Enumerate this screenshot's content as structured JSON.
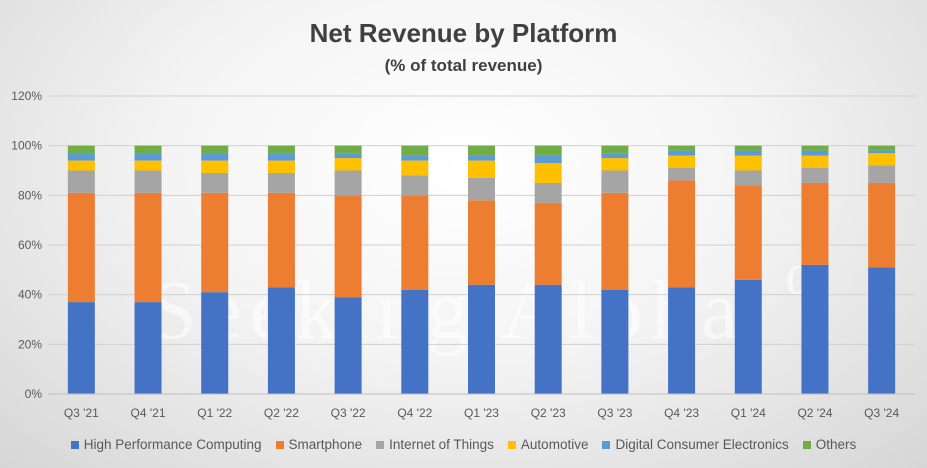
{
  "chart_data": {
    "type": "bar",
    "stacked": true,
    "title": "Net Revenue by Platform",
    "subtitle": "(% of total revenue)",
    "watermark": "Seeking Alpha",
    "watermark_symbol": "α",
    "xlabel": "",
    "ylabel": "",
    "ylim": [
      0,
      120
    ],
    "yticks": [
      "0%",
      "20%",
      "40%",
      "60%",
      "80%",
      "100%",
      "120%"
    ],
    "grid": true,
    "legend_position": "bottom",
    "categories": [
      "Q3 '21",
      "Q4 '21",
      "Q1 '22",
      "Q2 '22",
      "Q3 '22",
      "Q4 '22",
      "Q1 '23",
      "Q2 '23",
      "Q3 '23",
      "Q4 '23",
      "Q1 '24",
      "Q2 '24",
      "Q3 '24"
    ],
    "series": [
      {
        "name": "High Performance Computing",
        "color": "#4472C4",
        "values": [
          37,
          37,
          41,
          43,
          39,
          42,
          44,
          44,
          42,
          43,
          46,
          52,
          51
        ]
      },
      {
        "name": "Smartphone",
        "color": "#ED7D31",
        "values": [
          44,
          44,
          40,
          38,
          41,
          38,
          34,
          33,
          39,
          43,
          38,
          33,
          34
        ]
      },
      {
        "name": "Internet of Things",
        "color": "#A5A5A5",
        "values": [
          9,
          9,
          8,
          8,
          10,
          8,
          9,
          8,
          9,
          5,
          6,
          6,
          7
        ]
      },
      {
        "name": "Automotive",
        "color": "#FFC000",
        "values": [
          4,
          4,
          5,
          5,
          5,
          6,
          7,
          8,
          5,
          5,
          6,
          5,
          5
        ]
      },
      {
        "name": "Digital Consumer Electronics",
        "color": "#5B9BD5",
        "values": [
          3,
          3,
          3,
          3,
          2,
          2,
          2,
          3,
          2,
          2,
          2,
          2,
          1
        ]
      },
      {
        "name": "Others",
        "color": "#70AD47",
        "values": [
          3,
          3,
          3,
          3,
          3,
          4,
          4,
          4,
          3,
          2,
          2,
          2,
          2
        ]
      }
    ]
  }
}
